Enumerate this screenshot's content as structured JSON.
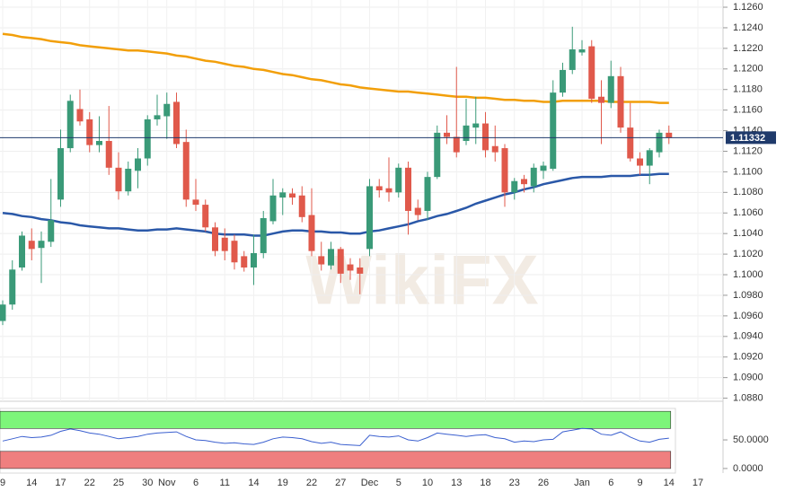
{
  "watermark": "WikiFX",
  "chart_data": [
    {
      "type": "candlestick",
      "categories": [
        "9",
        null,
        null,
        "14",
        null,
        null,
        "17",
        null,
        null,
        "22",
        null,
        null,
        "25",
        null,
        null,
        "30",
        null,
        "Nov",
        null,
        null,
        "6",
        null,
        null,
        "11",
        null,
        null,
        "14",
        null,
        null,
        "19",
        null,
        null,
        "22",
        null,
        null,
        "27",
        null,
        null,
        "Dec",
        null,
        null,
        "5",
        null,
        null,
        "10",
        null,
        null,
        "13",
        null,
        null,
        "18",
        null,
        null,
        "23",
        null,
        null,
        "26",
        null,
        null,
        null,
        "Jan",
        null,
        null,
        "6",
        null,
        null,
        "9",
        null,
        null,
        "14",
        null,
        null,
        "17"
      ],
      "open": [
        1.0955,
        1.0971,
        1.1007,
        1.1033,
        1.1026,
        1.1032,
        1.1073,
        1.1123,
        1.1161,
        1.1151,
        1.1126,
        1.113,
        1.1104,
        1.1081,
        1.1101,
        1.1113,
        1.1151,
        1.1154,
        1.1168,
        1.1129,
        1.1073,
        1.1068,
        1.1046,
        1.1036,
        1.1033,
        1.1018,
        1.1007,
        1.1021,
        1.1052,
        1.1075,
        1.1079,
        1.1077,
        1.1058,
        1.1018,
        1.1009,
        1.1025,
        1.101,
        1.1007,
        1.1025,
        1.1086,
        1.1084,
        1.108,
        1.1104,
        1.1065,
        1.1062,
        1.1095,
        1.1138,
        1.1134,
        1.113,
        1.1143,
        1.1147,
        1.1125,
        1.1123,
        1.108,
        1.1093,
        1.1086,
        1.1101,
        1.1103,
        1.1177,
        1.1199,
        1.1216,
        1.1222,
        1.1173,
        1.1167,
        1.1193,
        1.1143,
        1.1113,
        1.1106,
        1.1119,
        1.1138,
        null,
        null,
        null
      ],
      "high": [
        1.0975,
        1.1014,
        1.1042,
        1.1045,
        1.1042,
        1.1093,
        1.1141,
        1.1175,
        1.118,
        1.1158,
        1.1154,
        1.1164,
        1.1119,
        1.111,
        1.1123,
        1.1155,
        1.1175,
        1.1177,
        1.1177,
        1.1141,
        1.1093,
        1.1073,
        1.1051,
        1.1045,
        1.1039,
        1.1023,
        1.1039,
        1.1062,
        1.1093,
        1.1084,
        1.1084,
        1.1086,
        1.1084,
        1.1032,
        1.1032,
        1.1027,
        1.1016,
        1.1016,
        1.1093,
        1.1093,
        1.1114,
        1.1108,
        1.111,
        1.1073,
        1.11,
        1.1145,
        1.1155,
        1.1202,
        1.1171,
        1.1173,
        1.1158,
        1.1145,
        1.1127,
        1.1094,
        1.1097,
        1.1108,
        1.111,
        1.1189,
        1.1206,
        1.1241,
        1.1228,
        1.1228,
        1.1189,
        1.1208,
        1.1202,
        1.1167,
        1.1119,
        1.1123,
        1.1141,
        1.1145,
        null,
        null,
        null
      ],
      "low": [
        1.0951,
        1.0966,
        1.1004,
        1.1014,
        1.0992,
        1.1027,
        1.1066,
        1.1119,
        1.1145,
        1.1119,
        1.1119,
        1.1097,
        1.1073,
        1.1077,
        1.1084,
        1.1106,
        1.1145,
        1.1132,
        1.1123,
        1.1066,
        1.1062,
        1.1042,
        1.1018,
        1.1014,
        1.1005,
        1.1003,
        1.099,
        1.1016,
        1.1049,
        1.1058,
        1.1068,
        1.1051,
        1.1018,
        1.1004,
        1.1005,
        1.0992,
        1.0995,
        1.0981,
        1.1018,
        1.1075,
        1.1071,
        1.1075,
        1.1039,
        1.1053,
        1.1053,
        1.1093,
        1.1127,
        1.1114,
        1.1126,
        1.1127,
        1.1114,
        1.111,
        1.1066,
        1.1073,
        1.108,
        1.108,
        1.1093,
        1.1101,
        1.1173,
        1.1195,
        1.1213,
        1.1167,
        1.1127,
        1.1162,
        1.1138,
        1.111,
        1.1097,
        1.1088,
        1.1114,
        1.1127,
        null,
        null,
        null
      ],
      "close": [
        1.0971,
        1.1005,
        1.1038,
        1.1025,
        1.1033,
        1.1053,
        1.1123,
        1.1169,
        1.1149,
        1.1126,
        1.113,
        1.1104,
        1.1081,
        1.1103,
        1.1113,
        1.1151,
        1.1155,
        1.1166,
        1.1127,
        1.1073,
        1.1068,
        1.1046,
        1.1023,
        1.1023,
        1.1012,
        1.1007,
        1.1021,
        1.1055,
        1.1077,
        1.108,
        1.1075,
        1.1056,
        1.1023,
        1.101,
        1.1025,
        1.1001,
        1.1004,
        1.1001,
        1.1086,
        1.1082,
        1.108,
        1.1104,
        1.1062,
        1.1058,
        1.1095,
        1.1138,
        1.1134,
        1.1119,
        1.1145,
        1.1147,
        1.1121,
        1.1119,
        1.108,
        1.1091,
        1.1088,
        1.1104,
        1.1106,
        1.1177,
        1.1199,
        1.1219,
        1.1219,
        1.1171,
        1.1167,
        1.1193,
        1.1143,
        1.1113,
        1.1106,
        1.1121,
        1.1138,
        1.1133,
        null,
        null,
        null
      ],
      "up_color": "#3a9a78",
      "down_color": "#e0594b",
      "series": [
        {
          "color": "#f29f0a",
          "values": [
            1.1234,
            1.1233,
            1.1231,
            1.123,
            1.1229,
            1.1227,
            1.1226,
            1.1225,
            1.1223,
            1.1222,
            1.1221,
            1.122,
            1.1219,
            1.1218,
            1.1218,
            1.1217,
            1.1216,
            1.1215,
            1.1213,
            1.1212,
            1.121,
            1.1208,
            1.1207,
            1.1205,
            1.1203,
            1.1202,
            1.12,
            1.1199,
            1.1197,
            1.1195,
            1.1194,
            1.1192,
            1.119,
            1.1189,
            1.1187,
            1.1185,
            1.1184,
            1.1182,
            1.1181,
            1.118,
            1.1179,
            1.1178,
            1.1178,
            1.1177,
            1.1176,
            1.1175,
            1.1174,
            1.1173,
            1.1173,
            1.1172,
            1.1172,
            1.1171,
            1.117,
            1.117,
            1.1169,
            1.1169,
            1.1168,
            1.1168,
            1.1169,
            1.1169,
            1.1169,
            1.1169,
            1.1169,
            1.1168,
            1.1168,
            1.1168,
            1.1168,
            1.1168,
            1.1167,
            1.1167,
            null,
            null,
            null
          ]
        },
        {
          "color": "#2a58a8",
          "values": [
            1.106,
            1.1059,
            1.1057,
            1.1056,
            1.1054,
            1.1053,
            1.1051,
            1.105,
            1.1048,
            1.1047,
            1.1046,
            1.1045,
            1.1045,
            1.1044,
            1.1043,
            1.1043,
            1.1044,
            1.1044,
            1.1045,
            1.1044,
            1.1043,
            1.1042,
            1.104,
            1.1039,
            1.1039,
            1.1039,
            1.1038,
            1.1038,
            1.104,
            1.1042,
            1.1043,
            1.1043,
            1.1042,
            1.1042,
            1.1041,
            1.1041,
            1.104,
            1.104,
            1.1042,
            1.1043,
            1.1045,
            1.1047,
            1.1049,
            1.1052,
            1.1054,
            1.1057,
            1.1059,
            1.1062,
            1.1065,
            1.1069,
            1.1072,
            1.1075,
            1.1078,
            1.108,
            1.1083,
            1.1085,
            1.1088,
            1.109,
            1.1092,
            1.1094,
            1.1095,
            1.1095,
            1.1095,
            1.1096,
            1.1096,
            1.1096,
            1.1097,
            1.1097,
            1.1098,
            1.1098,
            null,
            null,
            null
          ]
        }
      ],
      "last_price": 1.11332,
      "last_price_color": "#1f3a6b",
      "ylim": [
        1.0877,
        1.1267
      ],
      "yticks": [
        {
          "value": 1.088,
          "label": "1.0880"
        },
        {
          "value": 1.09,
          "label": "1.0900"
        },
        {
          "value": 1.092,
          "label": "1.0920"
        },
        {
          "value": 1.094,
          "label": "1.0940"
        },
        {
          "value": 1.096,
          "label": "1.0960"
        },
        {
          "value": 1.098,
          "label": "1.0980"
        },
        {
          "value": 1.1,
          "label": "1.1000"
        },
        {
          "value": 1.102,
          "label": "1.1020"
        },
        {
          "value": 1.104,
          "label": "1.1040"
        },
        {
          "value": 1.106,
          "label": "1.1060"
        },
        {
          "value": 1.108,
          "label": "1.1080"
        },
        {
          "value": 1.11,
          "label": "1.1100"
        },
        {
          "value": 1.112,
          "label": "1.1120"
        },
        {
          "value": 1.114,
          "label": "1.1140"
        },
        {
          "value": 1.116,
          "label": "1.1160"
        },
        {
          "value": 1.118,
          "label": "1.1180"
        },
        {
          "value": 1.12,
          "label": "1.1200"
        },
        {
          "value": 1.122,
          "label": "1.1220"
        },
        {
          "value": 1.124,
          "label": "1.1240"
        },
        {
          "value": 1.126,
          "label": "1.1260"
        }
      ],
      "grid": true
    },
    {
      "type": "line",
      "series": [
        {
          "color": "#3a5fcf",
          "values": [
            48,
            52,
            56,
            54,
            55,
            58,
            65,
            69,
            66,
            62,
            60,
            56,
            52,
            54,
            56,
            60,
            62,
            63,
            64,
            56,
            50,
            49,
            46,
            44,
            45,
            43,
            42,
            46,
            52,
            55,
            54,
            52,
            47,
            44,
            46,
            42,
            41,
            40,
            58,
            56,
            55,
            57,
            50,
            48,
            54,
            62,
            60,
            58,
            56,
            58,
            59,
            54,
            52,
            46,
            48,
            47,
            50,
            51,
            64,
            67,
            70,
            69,
            60,
            58,
            64,
            55,
            48,
            46,
            51,
            53,
            null,
            null,
            null
          ]
        }
      ],
      "bands": [
        {
          "range": [
            70,
            100
          ],
          "color": "#7df57a"
        },
        {
          "range": [
            0,
            30
          ],
          "color": "#ef7f7f"
        }
      ],
      "ylim": [
        -8,
        105
      ],
      "yticks": [
        {
          "value": 50,
          "label": "50.0000"
        },
        {
          "value": 0,
          "label": "0.0000"
        }
      ]
    }
  ]
}
